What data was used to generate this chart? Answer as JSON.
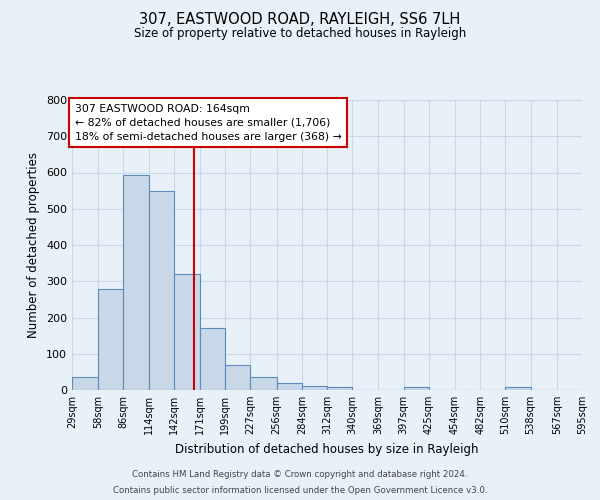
{
  "title": "307, EASTWOOD ROAD, RAYLEIGH, SS6 7LH",
  "subtitle": "Size of property relative to detached houses in Rayleigh",
  "xlabel": "Distribution of detached houses by size in Rayleigh",
  "ylabel": "Number of detached properties",
  "bar_left_edges": [
    29,
    58,
    86,
    114,
    142,
    171,
    199,
    227,
    256,
    284,
    312,
    340,
    369,
    397,
    425,
    454,
    482,
    510,
    538,
    567
  ],
  "bar_widths": [
    29,
    28,
    28,
    28,
    29,
    28,
    28,
    29,
    28,
    28,
    28,
    29,
    28,
    28,
    28,
    28,
    28,
    28,
    29,
    28
  ],
  "bar_heights": [
    37,
    280,
    592,
    550,
    320,
    170,
    68,
    37,
    20,
    10,
    8,
    0,
    0,
    7,
    0,
    0,
    0,
    8,
    0,
    0
  ],
  "bar_facecolor": "#c8d8e8",
  "bar_edgecolor": "#5b8db8",
  "tick_labels": [
    "29sqm",
    "58sqm",
    "86sqm",
    "114sqm",
    "142sqm",
    "171sqm",
    "199sqm",
    "227sqm",
    "256sqm",
    "284sqm",
    "312sqm",
    "340sqm",
    "369sqm",
    "397sqm",
    "425sqm",
    "454sqm",
    "482sqm",
    "510sqm",
    "538sqm",
    "567sqm",
    "595sqm"
  ],
  "vline_x": 164,
  "vline_color": "#cc0000",
  "annotation_line1": "307 EASTWOOD ROAD: 164sqm",
  "annotation_line2": "← 82% of detached houses are smaller (1,706)",
  "annotation_line3": "18% of semi-detached houses are larger (368) →",
  "annotation_box_color": "#ffffff",
  "annotation_box_edgecolor": "#cc0000",
  "ylim": [
    0,
    800
  ],
  "yticks": [
    0,
    100,
    200,
    300,
    400,
    500,
    600,
    700,
    800
  ],
  "grid_color": "#c8d8e8",
  "bg_color": "#e8f0f8",
  "footer1": "Contains HM Land Registry data © Crown copyright and database right 2024.",
  "footer2": "Contains public sector information licensed under the Open Government Licence v3.0."
}
